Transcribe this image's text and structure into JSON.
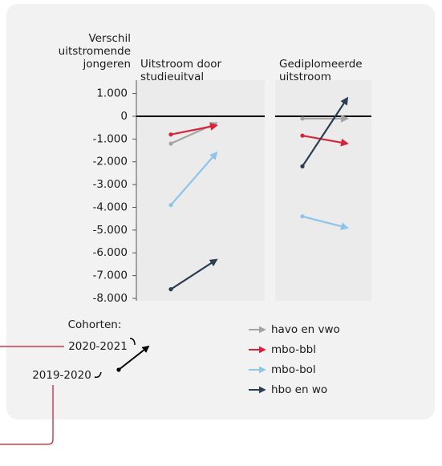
{
  "chart_data": {
    "type": "slope",
    "ylabel": [
      "Verschil",
      "uitstromende",
      "jongeren"
    ],
    "ylim": [
      -8000,
      1000
    ],
    "yticks": [
      {
        "value": 1000,
        "label": "1.000"
      },
      0,
      {
        "value": -1000,
        "label": "-1.000"
      },
      {
        "value": -2000,
        "label": "-2.000"
      },
      {
        "value": -3000,
        "label": "-3.000"
      },
      {
        "value": -4000,
        "label": "-4.000"
      },
      {
        "value": -5000,
        "label": "-5.000"
      },
      {
        "value": -6000,
        "label": "-6.000"
      },
      {
        "value": -7000,
        "label": "-7.000"
      },
      {
        "value": -8000,
        "label": "-8.000"
      }
    ],
    "series": [
      {
        "name": "havo en vwo",
        "color": "#a3a3a3"
      },
      {
        "name": "mbo-bbl",
        "color": "#d8233a"
      },
      {
        "name": "mbo-bol",
        "color": "#8dc4ea"
      },
      {
        "name": "hbo en wo",
        "color": "#2b3d50"
      }
    ],
    "panels": [
      {
        "title": [
          "Uitstroom door",
          "studieuitval"
        ],
        "values": [
          [
            -1200,
            -300
          ],
          [
            -800,
            -400
          ],
          [
            -3900,
            -1600
          ],
          [
            -7600,
            -6300
          ]
        ]
      },
      {
        "title": [
          "Gediplomeerde",
          "uitstroom"
        ],
        "values": [
          [
            -100,
            -100
          ],
          [
            -850,
            -1200
          ],
          [
            -4400,
            -4900
          ],
          [
            -2200,
            800
          ]
        ]
      }
    ],
    "cohort_label": "Cohorten:",
    "categories": [
      "2019-2020",
      "2020-2021"
    ]
  }
}
